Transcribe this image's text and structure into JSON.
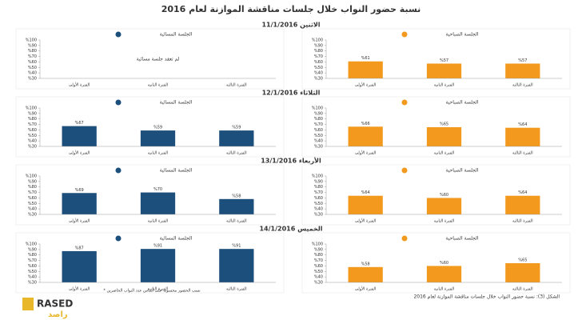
{
  "header": {
    "title": "نسبة حضور النواب خلال جلسات مناقشة الموازنة لعام 2016"
  },
  "days": [
    "الاثنين 11/1/2016",
    "الثلاثاء 12/1/2016",
    "الأربعاء 13/1/2016",
    "الخميس 14/1/2016"
  ],
  "footnote": "* نسب الحضور محسوبة على أساس عدد النواب الحاضرين",
  "caption": "الشكل (3): نسبة حضور النواب خلال جلسات مناقشة الموازنة لعام 2016",
  "logo": {
    "latin": "RASED",
    "arabic": "راصد"
  },
  "chart_data": [
    {
      "type": "bar",
      "title": "الجلسة الصباحية",
      "color": "#f39a1e",
      "categories": [
        "الفترة الأولى",
        "الفترة الثانية",
        "الفترة الثالثة"
      ],
      "values": [
        61,
        57,
        57
      ],
      "value_labels": [
        "%61",
        "%57",
        "%57"
      ],
      "ylim": [
        30,
        100
      ],
      "yticks": [
        {
          "value": 30,
          "label": "%30"
        },
        {
          "value": 40,
          "label": "%40"
        },
        {
          "value": 50,
          "label": "%50"
        },
        {
          "value": 60,
          "label": "%60"
        },
        {
          "value": 70,
          "label": "%70"
        },
        {
          "value": 80,
          "label": "%80"
        },
        {
          "value": 90,
          "label": "%90"
        },
        {
          "value": 100,
          "label": "%100"
        }
      ]
    },
    {
      "type": "bar",
      "title": "الجلسة المسائية",
      "color": "#1d4f7c",
      "note": "لم تعقد جلسة مسائية",
      "categories": [
        "الفترة الأولى",
        "الفترة الثانية",
        "الفترة الثالثة"
      ],
      "values": [
        null,
        null,
        null
      ],
      "ylim": [
        30,
        100
      ],
      "yticks": [
        {
          "value": 30,
          "label": "%30"
        },
        {
          "value": 40,
          "label": "%40"
        },
        {
          "value": 50,
          "label": "%50"
        },
        {
          "value": 60,
          "label": "%60"
        },
        {
          "value": 70,
          "label": "%70"
        },
        {
          "value": 80,
          "label": "%80"
        },
        {
          "value": 90,
          "label": "%90"
        },
        {
          "value": 100,
          "label": "%100"
        }
      ]
    },
    {
      "type": "bar",
      "title": "الجلسة الصباحية",
      "color": "#f39a1e",
      "categories": [
        "الفترة الأولى",
        "الفترة الثانية",
        "الفترة الثالثة"
      ],
      "values": [
        66,
        65,
        64
      ],
      "value_labels": [
        "%66",
        "%65",
        "%64"
      ],
      "ylim": [
        30,
        100
      ],
      "yticks": [
        {
          "value": 30,
          "label": "%30"
        },
        {
          "value": 40,
          "label": "%40"
        },
        {
          "value": 50,
          "label": "%50"
        },
        {
          "value": 60,
          "label": "%60"
        },
        {
          "value": 70,
          "label": "%70"
        },
        {
          "value": 80,
          "label": "%80"
        },
        {
          "value": 90,
          "label": "%90"
        },
        {
          "value": 100,
          "label": "%100"
        }
      ]
    },
    {
      "type": "bar",
      "title": "الجلسة المسائية",
      "color": "#1d4f7c",
      "categories": [
        "الفترة الأولى",
        "الفترة الثانية",
        "الفترة الثالثة"
      ],
      "values": [
        67,
        59,
        59
      ],
      "value_labels": [
        "%67",
        "%59",
        "%59"
      ],
      "ylim": [
        30,
        100
      ],
      "yticks": [
        {
          "value": 30,
          "label": "%30"
        },
        {
          "value": 40,
          "label": "%40"
        },
        {
          "value": 50,
          "label": "%50"
        },
        {
          "value": 60,
          "label": "%60"
        },
        {
          "value": 70,
          "label": "%70"
        },
        {
          "value": 80,
          "label": "%80"
        },
        {
          "value": 90,
          "label": "%90"
        },
        {
          "value": 100,
          "label": "%100"
        }
      ]
    },
    {
      "type": "bar",
      "title": "الجلسة الصباحية",
      "color": "#f39a1e",
      "categories": [
        "الفترة الأولى",
        "الفترة الثانية",
        "الفترة الثالثة"
      ],
      "values": [
        64,
        60,
        64
      ],
      "value_labels": [
        "%64",
        "%60",
        "%64"
      ],
      "ylim": [
        30,
        100
      ],
      "yticks": [
        {
          "value": 30,
          "label": "%30"
        },
        {
          "value": 40,
          "label": "%40"
        },
        {
          "value": 50,
          "label": "%50"
        },
        {
          "value": 60,
          "label": "%60"
        },
        {
          "value": 70,
          "label": "%70"
        },
        {
          "value": 80,
          "label": "%80"
        },
        {
          "value": 90,
          "label": "%90"
        },
        {
          "value": 100,
          "label": "%100"
        }
      ]
    },
    {
      "type": "bar",
      "title": "الجلسة المسائية",
      "color": "#1d4f7c",
      "categories": [
        "الفترة الأولى",
        "الفترة الثانية",
        "الفترة الثالثة"
      ],
      "values": [
        69,
        70,
        58
      ],
      "value_labels": [
        "%69",
        "%70",
        "%58"
      ],
      "ylim": [
        30,
        100
      ],
      "yticks": [
        {
          "value": 30,
          "label": "%30"
        },
        {
          "value": 40,
          "label": "%40"
        },
        {
          "value": 50,
          "label": "%50"
        },
        {
          "value": 60,
          "label": "%60"
        },
        {
          "value": 70,
          "label": "%70"
        },
        {
          "value": 80,
          "label": "%80"
        },
        {
          "value": 90,
          "label": "%90"
        },
        {
          "value": 100,
          "label": "%100"
        }
      ]
    },
    {
      "type": "bar",
      "title": "الجلسة الصباحية",
      "color": "#f39a1e",
      "categories": [
        "الفترة الأولى",
        "الفترة الثانية",
        "الفترة الثالثة"
      ],
      "values": [
        58,
        60,
        65
      ],
      "value_labels": [
        "%58",
        "%60",
        "%65"
      ],
      "ylim": [
        30,
        100
      ],
      "yticks": [
        {
          "value": 30,
          "label": "%30"
        },
        {
          "value": 40,
          "label": "%40"
        },
        {
          "value": 50,
          "label": "%50"
        },
        {
          "value": 60,
          "label": "%60"
        },
        {
          "value": 70,
          "label": "%70"
        },
        {
          "value": 80,
          "label": "%80"
        },
        {
          "value": 90,
          "label": "%90"
        },
        {
          "value": 100,
          "label": "%100"
        }
      ]
    },
    {
      "type": "bar",
      "title": "الجلسة المسائية",
      "color": "#1d4f7c",
      "categories": [
        "الفترة الأولى",
        "الفترة الثانية",
        "الفترة الثالثة"
      ],
      "values": [
        87,
        91,
        91
      ],
      "value_labels": [
        "%87",
        "%91",
        "%91"
      ],
      "ylim": [
        30,
        100
      ],
      "yticks": [
        {
          "value": 30,
          "label": "%30"
        },
        {
          "value": 40,
          "label": "%40"
        },
        {
          "value": 50,
          "label": "%50"
        },
        {
          "value": 60,
          "label": "%60"
        },
        {
          "value": 70,
          "label": "%70"
        },
        {
          "value": 80,
          "label": "%80"
        },
        {
          "value": 90,
          "label": "%90"
        },
        {
          "value": 100,
          "label": "%100"
        }
      ]
    }
  ]
}
